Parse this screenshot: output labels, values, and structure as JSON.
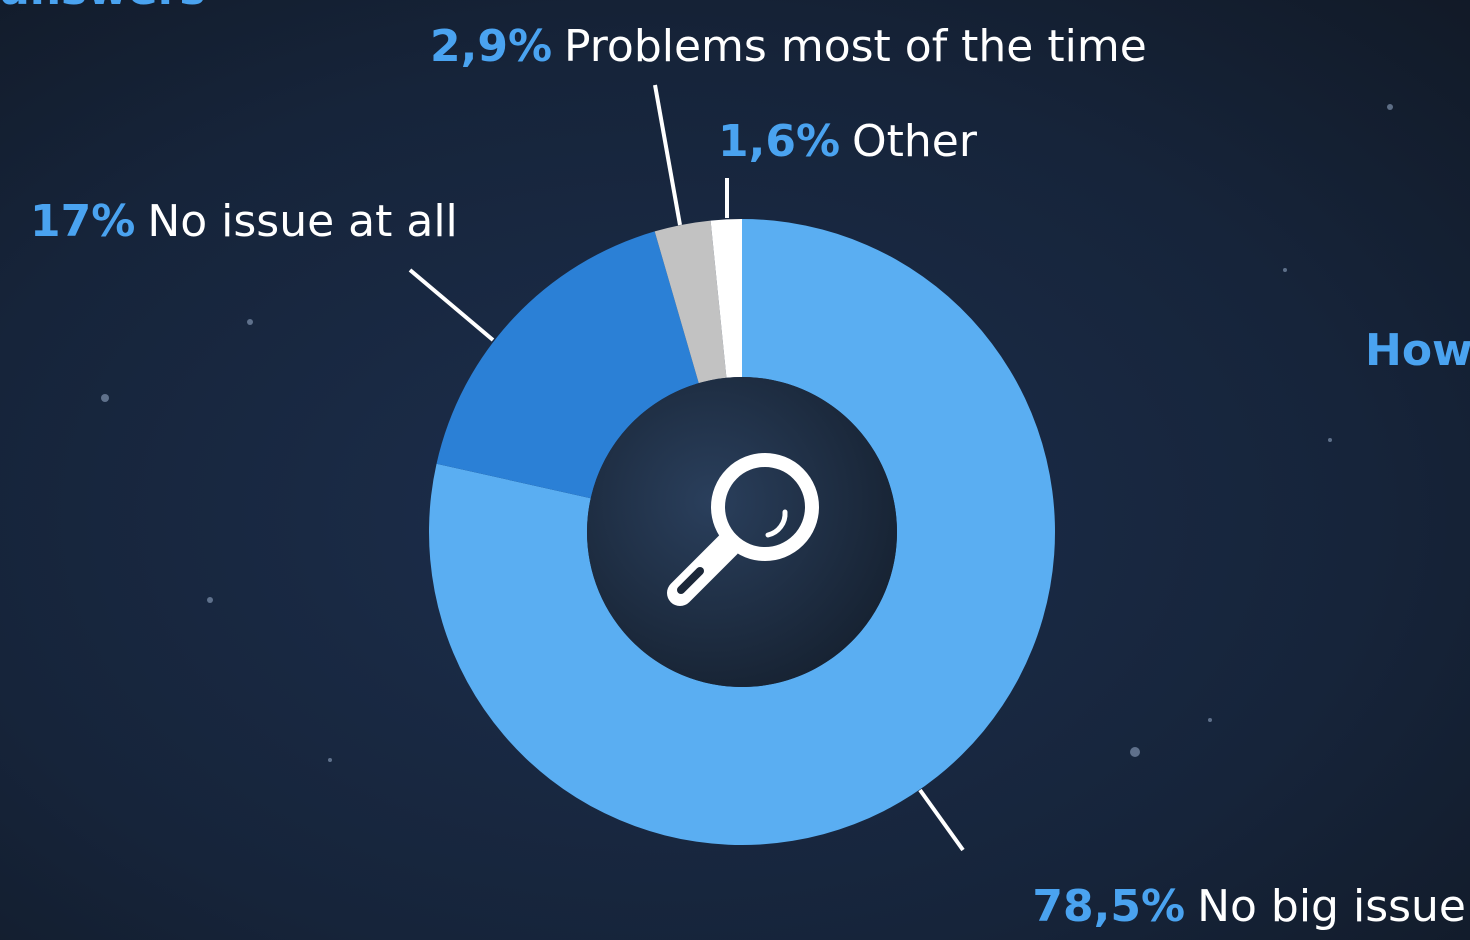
{
  "chart_data": {
    "type": "pie",
    "donut": true,
    "categories": [
      "No big issue",
      "No issue at all",
      "Problems most of the time",
      "Other"
    ],
    "values": [
      78.5,
      17,
      2.9,
      1.6
    ],
    "value_labels": [
      "78,5%",
      "17%",
      "2,9%",
      "1,6%"
    ],
    "colors": [
      "#5aaef2",
      "#2b80d6",
      "#c2c2c2",
      "#ffffff"
    ]
  },
  "cropped_heading": "answers",
  "cropped_side_heading": "How"
}
